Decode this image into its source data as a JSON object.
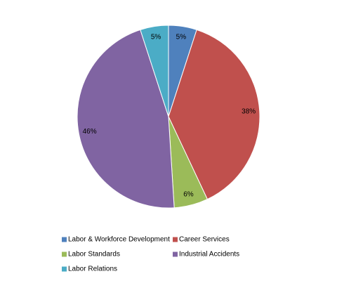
{
  "chart_data": {
    "type": "pie",
    "categories": [
      "Labor & Workforce Development",
      "Career Services",
      "Labor Standards",
      "Industrial Accidents",
      "Labor Relations"
    ],
    "values": [
      5,
      38,
      6,
      46,
      5
    ],
    "value_labels": [
      "5%",
      "38%",
      "6%",
      "46%",
      "5%"
    ],
    "colors": [
      "#4f81bd",
      "#c0504d",
      "#9bbb59",
      "#8064a2",
      "#4bacc6"
    ],
    "legend": "bottom"
  }
}
